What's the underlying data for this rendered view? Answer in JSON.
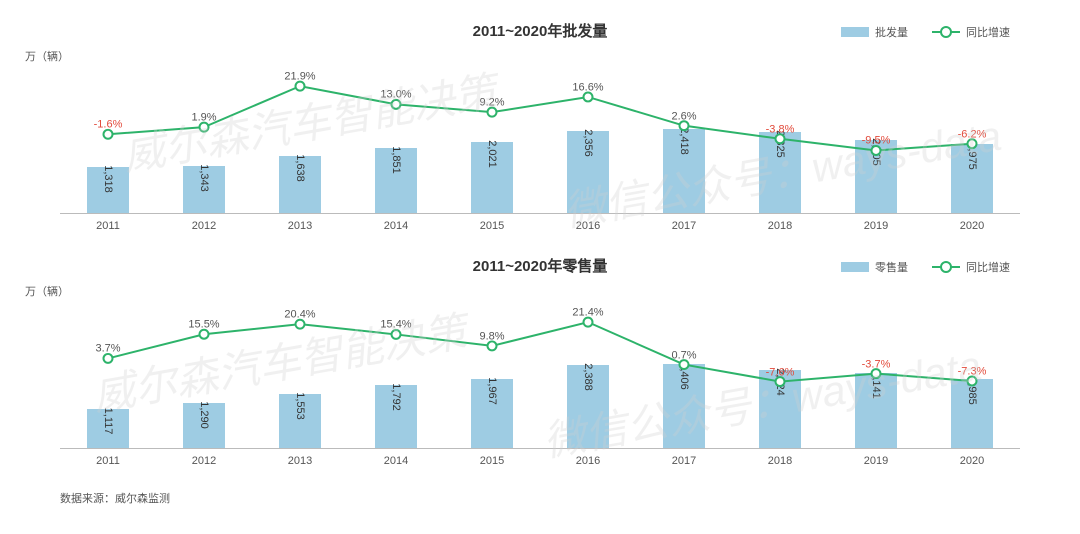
{
  "colors": {
    "bar": "#9ecce3",
    "line": "#2db36a",
    "marker_fill": "#ffffff",
    "pct_pos": "#555555",
    "pct_neg": "#e24a3b",
    "axis": "#bbbbbb",
    "text": "#333333",
    "bg": "#ffffff"
  },
  "x_categories": [
    "2011",
    "2012",
    "2013",
    "2014",
    "2015",
    "2016",
    "2017",
    "2018",
    "2019",
    "2020"
  ],
  "chart1": {
    "title": "2011~2020年批发量",
    "y_unit": "万（辆）",
    "legend_bar": "批发量",
    "legend_line": "同比增速",
    "type": "bar+line",
    "bar_max": 2600,
    "line_domain": [
      -40,
      40
    ],
    "bars": [
      1318,
      1343,
      1638,
      1851,
      2021,
      2356,
      2418,
      2325,
      2105,
      1975
    ],
    "line_pct": [
      -1.6,
      1.9,
      21.9,
      13.0,
      9.2,
      16.6,
      2.6,
      -3.8,
      -9.5,
      -6.2
    ]
  },
  "chart2": {
    "title": "2011~2020年零售量",
    "y_unit": "万（辆）",
    "legend_bar": "零售量",
    "legend_line": "同比增速",
    "type": "bar+line",
    "bar_max": 2600,
    "line_domain": [
      -40,
      40
    ],
    "bars": [
      1117,
      1290,
      1553,
      1792,
      1967,
      2388,
      2406,
      2224,
      2141,
      1985
    ],
    "line_pct": [
      3.7,
      15.5,
      20.4,
      15.4,
      9.8,
      21.4,
      0.7,
      -7.6,
      -3.7,
      -7.3
    ]
  },
  "source_label": "数据来源：威尔森监测",
  "watermarks": [
    "威尔森汽车智能决策",
    "微信公众号：ways-data",
    "威尔森汽车智能决策",
    "微信公众号：ways-data"
  ]
}
